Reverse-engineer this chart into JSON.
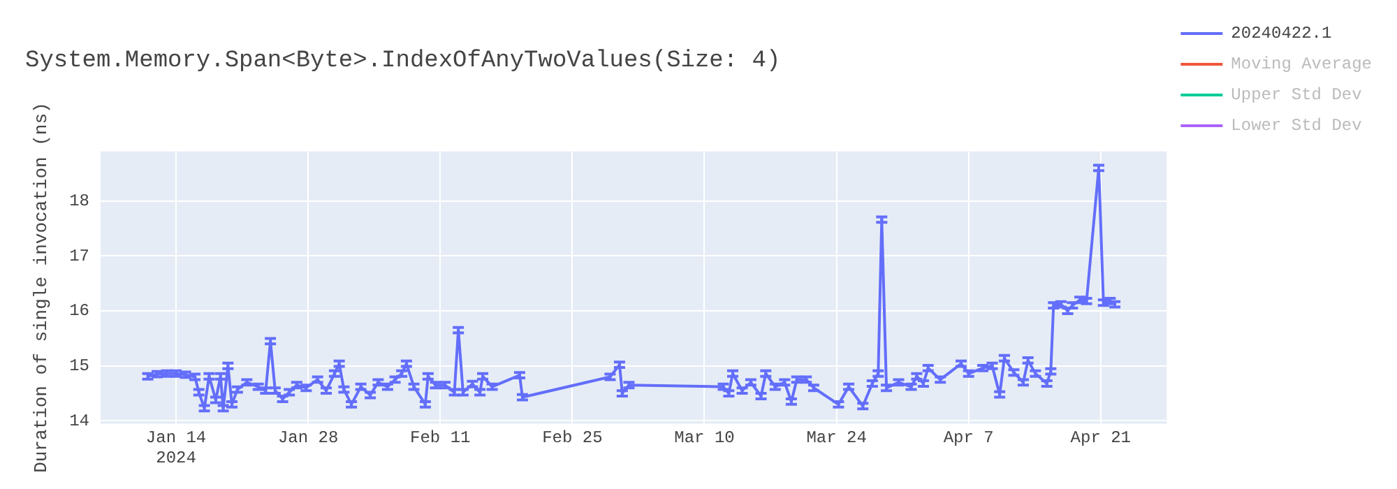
{
  "chart_data": {
    "type": "line",
    "title": "System.Memory.Span<Byte>.IndexOfAnyTwoValues(Size: 4)",
    "ylabel": "Duration of single invocation (ns)",
    "x": [
      "2024-01-11",
      "2024-01-12",
      "2024-01-13",
      "2024-01-14",
      "2024-01-15",
      "2024-01-16",
      "2024-01-16T10:00",
      "2024-01-17",
      "2024-01-17T12:00",
      "2024-01-18T05:00",
      "2024-01-18T17:00",
      "2024-01-19",
      "2024-01-19T12:00",
      "2024-01-19T22:00",
      "2024-01-20T12:00",
      "2024-01-21T12:00",
      "2024-01-22T17:00",
      "2024-01-23T12:00",
      "2024-01-24",
      "2024-01-24T12:00",
      "2024-01-25T07:00",
      "2024-01-26",
      "2024-01-26T19:00",
      "2024-01-27T19:00",
      "2024-01-29",
      "2024-01-29T22:00",
      "2024-01-30T19:00",
      "2024-01-31T07:00",
      "2024-01-31T19:00",
      "2024-02-01T14:00",
      "2024-02-02T14:00",
      "2024-02-03T14:00",
      "2024-02-04T10:00",
      "2024-02-05T10:00",
      "2024-02-06T05:00",
      "2024-02-06T22:00",
      "2024-02-07T10:00",
      "2024-02-08T05:00",
      "2024-02-09T10:00",
      "2024-02-09T17:00",
      "2024-02-10T12:00",
      "2024-02-11T12:00",
      "2024-02-12T12:00",
      "2024-02-12T22:00",
      "2024-02-13T10:00",
      "2024-02-14T10:00",
      "2024-02-15T05:00",
      "2024-02-15T12:00",
      "2024-02-16T12:00",
      "2024-02-19T10:00",
      "2024-02-19T17:00",
      "2024-02-29",
      "2024-03-01",
      "2024-03-01T07:00",
      "2024-03-02",
      "2024-03-12",
      "2024-03-12T14:00",
      "2024-03-13",
      "2024-03-14",
      "2024-03-14T22:00",
      "2024-03-16",
      "2024-03-16T12:00",
      "2024-03-17T12:00",
      "2024-03-18T12:00",
      "2024-03-19T05:00",
      "2024-03-19T19:00",
      "2024-03-20T19:00",
      "2024-03-21T14:00",
      "2024-03-24T05:00",
      "2024-03-25T07:00",
      "2024-03-26T19:00",
      "2024-03-27T19:00",
      "2024-03-28T10:00",
      "2024-03-28T19:00",
      "2024-03-29T07:00",
      "2024-03-30T14:00",
      "2024-03-31T22:00",
      "2024-04-01T12:00",
      "2024-04-02T05:00",
      "2024-04-02T17:00",
      "2024-04-04",
      "2024-04-06T05:00",
      "2024-04-07",
      "2024-04-08T12:00",
      "2024-04-09T12:00",
      "2024-04-10T07:00",
      "2024-04-10T19:00",
      "2024-04-11T19:00",
      "2024-04-12T19:00",
      "2024-04-13T07:00",
      "2024-04-14T02:00",
      "2024-04-15T07:00",
      "2024-04-15T17:00",
      "2024-04-16",
      "2024-04-16T19:00",
      "2024-04-17T12:00",
      "2024-04-18",
      "2024-04-18T19:00",
      "2024-04-19T12:00",
      "2024-04-20T19:00",
      "2024-04-21T07:00",
      "2024-04-22",
      "2024-04-22T12:00"
    ],
    "series": [
      {
        "name": "20240422.1",
        "color": "#636efa",
        "values": [
          14.81,
          14.85,
          14.86,
          14.86,
          14.84,
          14.8,
          14.52,
          14.23,
          14.81,
          14.38,
          14.81,
          14.23,
          15.0,
          14.3,
          14.57,
          14.7,
          14.62,
          14.55,
          15.45,
          14.55,
          14.4,
          14.52,
          14.65,
          14.6,
          14.75,
          14.55,
          14.86,
          15.04,
          14.57,
          14.3,
          14.62,
          14.47,
          14.7,
          14.62,
          14.75,
          14.86,
          15.04,
          14.62,
          14.3,
          14.81,
          14.65,
          14.65,
          14.52,
          15.65,
          14.52,
          14.67,
          14.52,
          14.81,
          14.62,
          14.83,
          14.43,
          14.8,
          15.02,
          14.5,
          14.65,
          14.62,
          14.5,
          14.86,
          14.55,
          14.7,
          14.45,
          14.86,
          14.62,
          14.7,
          14.35,
          14.75,
          14.75,
          14.6,
          14.3,
          14.62,
          14.27,
          14.68,
          14.86,
          17.66,
          14.6,
          14.7,
          14.62,
          14.81,
          14.68,
          14.96,
          14.75,
          15.04,
          14.86,
          14.96,
          15.0,
          14.48,
          15.14,
          14.88,
          14.7,
          15.1,
          14.86,
          14.68,
          14.9,
          16.1,
          16.12,
          16.0,
          16.1,
          16.2,
          16.18,
          18.6,
          16.15,
          16.18,
          16.12
        ],
        "errors": [
          0.05,
          0.05,
          0.05,
          0.05,
          0.05,
          0.05,
          0.05,
          0.05,
          0.05,
          0.05,
          0.05,
          0.05,
          0.05,
          0.05,
          0.05,
          0.05,
          0.05,
          0.05,
          0.05,
          0.05,
          0.05,
          0.05,
          0.05,
          0.05,
          0.05,
          0.05,
          0.05,
          0.05,
          0.05,
          0.05,
          0.05,
          0.05,
          0.05,
          0.05,
          0.05,
          0.05,
          0.05,
          0.05,
          0.05,
          0.05,
          0.05,
          0.05,
          0.05,
          0.05,
          0.05,
          0.05,
          0.05,
          0.05,
          0.05,
          0.05,
          0.05,
          0.05,
          0.05,
          0.05,
          0.05,
          0.05,
          0.05,
          0.05,
          0.05,
          0.05,
          0.05,
          0.05,
          0.05,
          0.05,
          0.05,
          0.05,
          0.05,
          0.05,
          0.05,
          0.05,
          0.05,
          0.05,
          0.05,
          0.05,
          0.05,
          0.05,
          0.05,
          0.05,
          0.05,
          0.05,
          0.05,
          0.05,
          0.05,
          0.05,
          0.05,
          0.05,
          0.05,
          0.05,
          0.05,
          0.05,
          0.05,
          0.05,
          0.05,
          0.05,
          0.05,
          0.05,
          0.05,
          0.05,
          0.05,
          0.05,
          0.05,
          0.05,
          0.05
        ]
      },
      {
        "name": "Moving Average",
        "color": "#ef553b",
        "values": [
          null,
          null,
          null,
          null,
          null,
          null,
          null,
          null,
          null,
          null,
          null,
          null,
          null,
          null,
          null,
          null,
          null,
          null,
          null,
          null,
          null,
          null,
          null,
          null,
          null,
          null,
          null,
          null,
          null,
          null,
          null,
          null,
          null,
          null,
          null,
          null,
          null,
          null,
          null,
          null,
          null,
          null,
          null,
          null,
          null,
          null,
          null,
          null,
          null,
          null,
          null,
          null,
          null,
          null,
          null,
          null,
          null,
          null,
          null,
          null,
          null,
          null,
          null,
          null,
          null,
          null,
          null,
          null,
          null,
          null,
          null,
          null,
          null,
          null,
          null,
          null,
          null,
          null,
          null,
          null,
          null,
          null,
          null,
          null,
          null,
          null,
          null,
          null,
          null,
          null,
          null,
          null,
          null,
          null,
          null,
          null,
          null,
          null,
          null,
          null,
          null,
          null,
          null
        ]
      },
      {
        "name": "Upper Std Dev",
        "color": "#00cc96",
        "values": [
          null,
          null,
          null,
          null,
          null,
          null,
          null,
          null,
          null,
          null,
          null,
          null,
          null,
          null,
          null,
          null,
          null,
          null,
          null,
          null,
          null,
          null,
          null,
          null,
          null,
          null,
          null,
          null,
          null,
          null,
          null,
          null,
          null,
          null,
          null,
          null,
          null,
          null,
          null,
          null,
          null,
          null,
          null,
          null,
          null,
          null,
          null,
          null,
          null,
          null,
          null,
          null,
          null,
          null,
          null,
          null,
          null,
          null,
          null,
          null,
          null,
          null,
          null,
          null,
          null,
          null,
          null,
          null,
          null,
          null,
          null,
          null,
          null,
          null,
          null,
          null,
          null,
          null,
          null,
          null,
          null,
          null,
          null,
          null,
          null,
          null,
          null,
          null,
          null,
          null,
          null,
          null,
          null,
          null,
          null,
          null,
          null,
          null,
          null,
          null,
          null,
          null,
          null
        ]
      },
      {
        "name": "Lower Std Dev",
        "color": "#ab63fa",
        "values": [
          null,
          null,
          null,
          null,
          null,
          null,
          null,
          null,
          null,
          null,
          null,
          null,
          null,
          null,
          null,
          null,
          null,
          null,
          null,
          null,
          null,
          null,
          null,
          null,
          null,
          null,
          null,
          null,
          null,
          null,
          null,
          null,
          null,
          null,
          null,
          null,
          null,
          null,
          null,
          null,
          null,
          null,
          null,
          null,
          null,
          null,
          null,
          null,
          null,
          null,
          null,
          null,
          null,
          null,
          null,
          null,
          null,
          null,
          null,
          null,
          null,
          null,
          null,
          null,
          null,
          null,
          null,
          null,
          null,
          null,
          null,
          null,
          null,
          null,
          null,
          null,
          null,
          null,
          null,
          null,
          null,
          null,
          null,
          null,
          null,
          null,
          null,
          null,
          null,
          null,
          null,
          null,
          null,
          null,
          null,
          null,
          null,
          null,
          null,
          null,
          null,
          null,
          null
        ]
      }
    ],
    "xlim": [
      "2024-01-06",
      "2024-04-28"
    ],
    "xticks": [
      {
        "value": "2024-01-14",
        "label": "Jan 14\n2024"
      },
      {
        "value": "2024-01-28",
        "label": "Jan 28"
      },
      {
        "value": "2024-02-11",
        "label": "Feb 11"
      },
      {
        "value": "2024-02-25",
        "label": "Feb 25"
      },
      {
        "value": "2024-03-10",
        "label": "Mar 10"
      },
      {
        "value": "2024-03-24",
        "label": "Mar 24"
      },
      {
        "value": "2024-04-07",
        "label": "Apr 7"
      },
      {
        "value": "2024-04-21",
        "label": "Apr 21"
      }
    ],
    "ylim": [
      13.95,
      18.9
    ],
    "yticks": [
      14,
      15,
      16,
      17,
      18
    ],
    "grid": true,
    "legend": "right",
    "marker": "none",
    "line_style": "solid"
  }
}
